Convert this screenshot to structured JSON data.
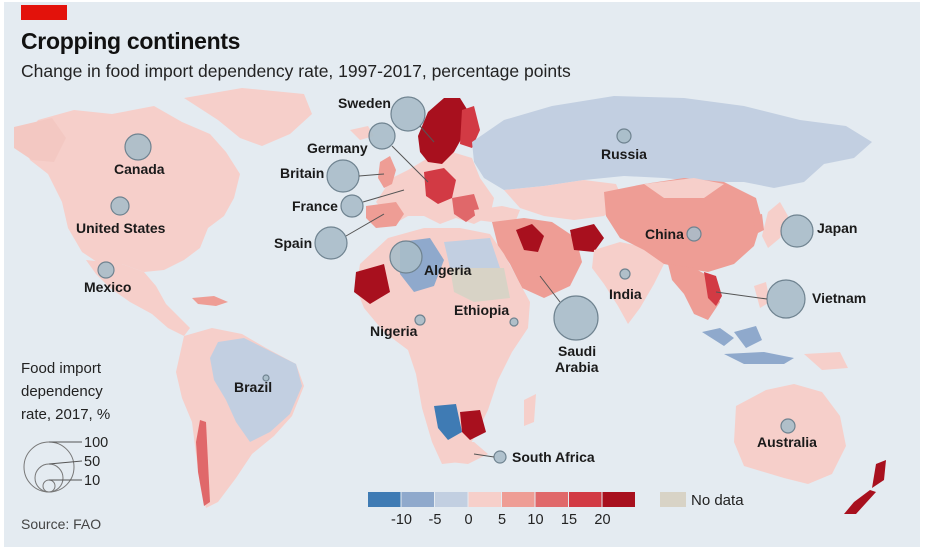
{
  "accent_color": "#e3120b",
  "header": {
    "title": "Cropping continents",
    "subtitle": "Change in food import dependency rate, 1997-2017, percentage points"
  },
  "source": "Source: FAO",
  "colors": {
    "ocean": "#e4ebf1",
    "no_data": "#d8d3c6",
    "bubble": "#a9bdc9"
  },
  "legend": {
    "size_title_lines": [
      "Food import",
      "dependency",
      "rate, 2017, %"
    ],
    "size_values": [
      100,
      50,
      10
    ],
    "color_scale": [
      {
        "range": "<-10",
        "color": "#3f7bb4"
      },
      {
        "range": "-10 to -5",
        "color": "#8fa9cc"
      },
      {
        "range": "-5 to 0",
        "color": "#c2cfe1"
      },
      {
        "range": "0 to 5",
        "color": "#f6cfca"
      },
      {
        "range": "5 to 10",
        "color": "#ee9d95"
      },
      {
        "range": "10 to 15",
        "color": "#e0686a"
      },
      {
        "range": "15 to 20",
        "color": "#d23a44"
      },
      {
        "range": ">20",
        "color": "#a8101e"
      }
    ],
    "ticks": [
      "-10",
      "-5",
      "0",
      "5",
      "10",
      "15",
      "20"
    ],
    "no_data_label": "No data"
  },
  "countries": [
    {
      "name": "Canada",
      "key": "canada"
    },
    {
      "name": "United States",
      "key": "united_states"
    },
    {
      "name": "Mexico",
      "key": "mexico"
    },
    {
      "name": "Brazil",
      "key": "brazil"
    },
    {
      "name": "Sweden",
      "key": "sweden"
    },
    {
      "name": "Germany",
      "key": "germany"
    },
    {
      "name": "Britain",
      "key": "britain"
    },
    {
      "name": "France",
      "key": "france"
    },
    {
      "name": "Spain",
      "key": "spain"
    },
    {
      "name": "Algeria",
      "key": "algeria"
    },
    {
      "name": "Nigeria",
      "key": "nigeria"
    },
    {
      "name": "Ethiopia",
      "key": "ethiopia"
    },
    {
      "name": "Saudi Arabia",
      "key": "saudi_arabia",
      "lines": [
        "Saudi",
        "Arabia"
      ]
    },
    {
      "name": "South Africa",
      "key": "south_africa"
    },
    {
      "name": "Russia",
      "key": "russia"
    },
    {
      "name": "China",
      "key": "china"
    },
    {
      "name": "India",
      "key": "india"
    },
    {
      "name": "Japan",
      "key": "japan"
    },
    {
      "name": "Vietnam",
      "key": "vietnam"
    },
    {
      "name": "Australia",
      "key": "australia"
    }
  ]
}
